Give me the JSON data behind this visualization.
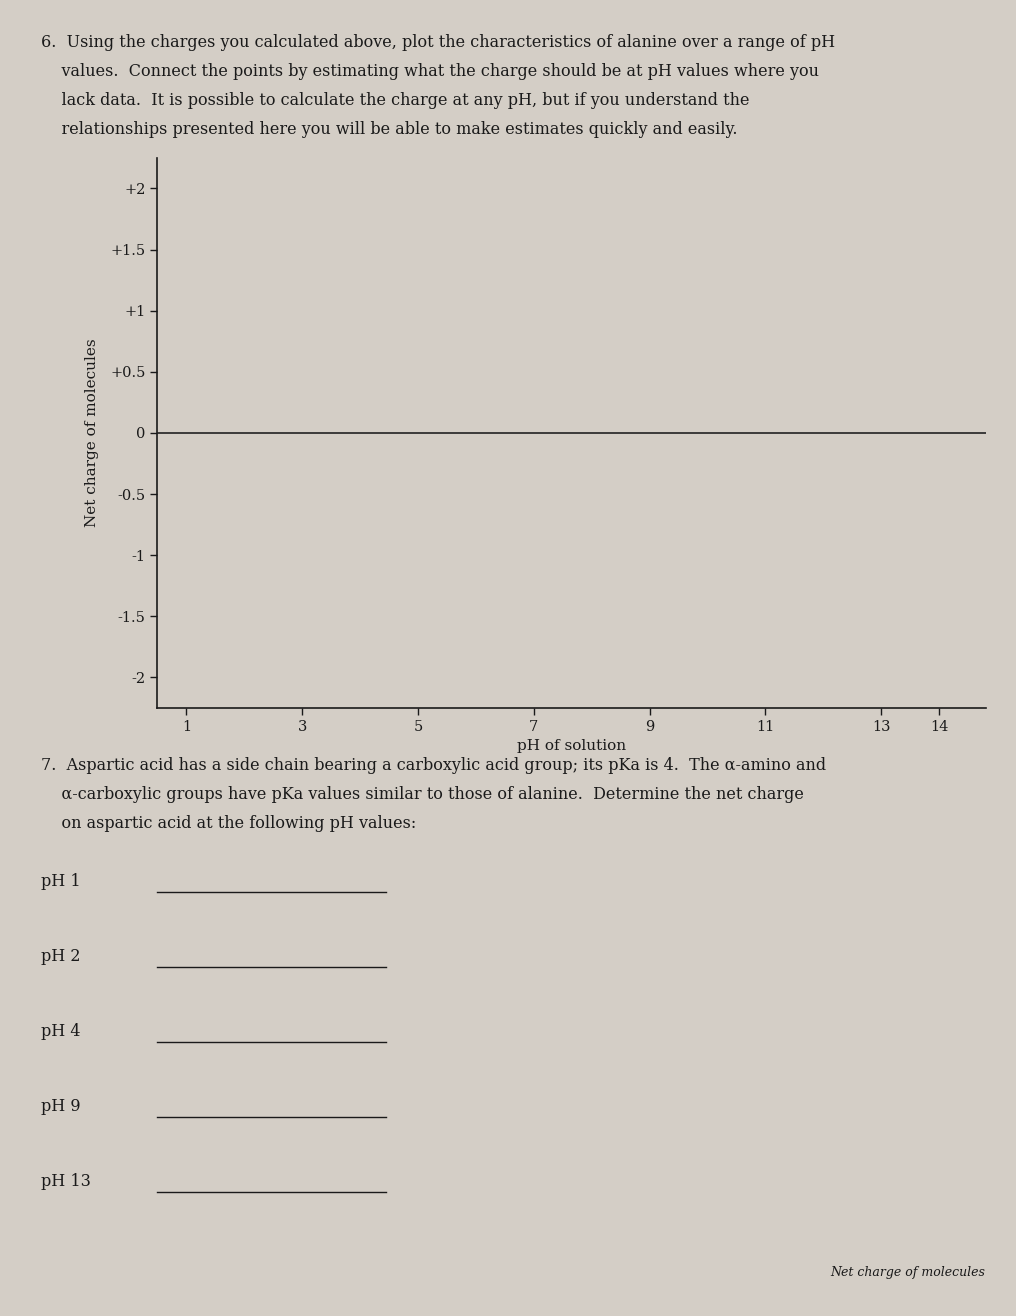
{
  "background_color": "#d4cec6",
  "page_width": 10.16,
  "page_height": 13.16,
  "chart": {
    "yticks": [
      -2,
      -1.5,
      -1,
      -0.5,
      0,
      0.5,
      1,
      1.5,
      2
    ],
    "ytick_labels": [
      "-2",
      "-1.5",
      "-1",
      "-0.5",
      "0",
      "+0.5",
      "+1",
      "+1.5",
      "+2"
    ],
    "xticks": [
      1,
      3,
      5,
      7,
      9,
      11,
      13,
      14
    ],
    "xtick_labels": [
      "1",
      "3",
      "5",
      "7",
      "9",
      "11",
      "13",
      "14"
    ],
    "xlabel": "pH of solution",
    "ylabel": "Net charge of molecules",
    "ylim": [
      -2.25,
      2.25
    ],
    "xlim": [
      0.5,
      14.8
    ],
    "zero_line_color": "#222222"
  },
  "q6_lines": [
    "6.  Using the charges you calculated above, plot the characteristics of alanine over a range of pH",
    "    values.  Connect the points by estimating what the charge should be at pH values where you",
    "    lack data.  It is possible to calculate the charge at any pH, but if you understand the",
    "    relationships presented here you will be able to make estimates quickly and easily."
  ],
  "q7_lines": [
    "7.  Aspartic acid has a side chain bearing a carboxylic acid group; its pKa is 4.  The α-amino and",
    "    α-carboxylic groups have pKa values similar to those of alanine.  Determine the net charge",
    "    on aspartic acid at the following pH values:"
  ],
  "ph_items": [
    "pH 1",
    "pH 2",
    "pH 4",
    "pH 9",
    "pH 13"
  ],
  "text_color": "#1a1a1a",
  "font_size_body": 11.5,
  "font_size_axis_label": 11,
  "font_size_tick": 10.5
}
